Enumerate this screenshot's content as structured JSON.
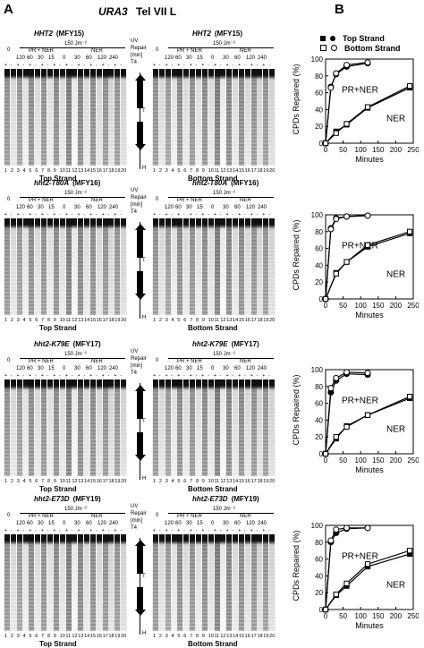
{
  "panel_letters": {
    "a": "A",
    "b": "B"
  },
  "figure_title": {
    "gene": "URA3",
    "rest": "Tel VII L"
  },
  "rows": [
    {
      "strain_left": "HHT2",
      "strain_right": "HHT2",
      "mutant": "",
      "mfy": "(MFY15)"
    },
    {
      "strain_left": "hht2-T80A",
      "strain_right": "hht2-T80A",
      "mutant": "T80A",
      "mfy": "(MFY16)"
    },
    {
      "strain_left": "hht2-K79E",
      "strain_right": "hht2-K79E",
      "mutant": "K79E",
      "mfy": "(MFY17)"
    },
    {
      "strain_left": "hht2-E73D",
      "strain_right": "hht2-E73D",
      "mutant": "E73D",
      "mfy": "(MFY19)"
    }
  ],
  "gel_header": {
    "zero": "0",
    "dose": "150 Jm⁻²",
    "pr_ner": "PR + NER",
    "ner": "NER",
    "times_left": [
      "120",
      "60",
      "30",
      "15"
    ],
    "times_right": [
      "0",
      "30",
      "60",
      "120",
      "240"
    ],
    "uv_labels": [
      "UV",
      "Repair",
      "[min]",
      "T4"
    ],
    "plus_minus": [
      "+",
      "-",
      "+",
      "-",
      "+",
      "-",
      "+",
      "-",
      "+",
      "-",
      "+",
      "-",
      "+",
      "-",
      "+",
      "-",
      "+",
      "-",
      "+",
      "-"
    ]
  },
  "lane_numbers": [
    "1",
    "2",
    "3",
    "4",
    "5",
    "6",
    "7",
    "8",
    "9",
    "10",
    "11",
    "12",
    "13",
    "14",
    "15",
    "16",
    "17",
    "18",
    "19",
    "20"
  ],
  "strand_labels": {
    "top": "Top Strand",
    "bottom": "Bottom Strand"
  },
  "map_labels": {
    "t4": "T4",
    "ura3": "URA3",
    "t": "T",
    "h": "H",
    "telo": "telo"
  },
  "legend": {
    "top": "Top Strand",
    "bottom": "Bottom Strand"
  },
  "chart_data": [
    {
      "type": "line",
      "ylabel": "CPDs Repaired (%)",
      "xlabel": "Minutes",
      "xlim": [
        0,
        250
      ],
      "ylim": [
        0,
        100
      ],
      "xticks": [
        0,
        50,
        100,
        150,
        200,
        250
      ],
      "yticks": [
        0,
        20,
        40,
        60,
        80,
        100
      ],
      "annotations": [
        "PR+NER",
        "NER"
      ],
      "series": [
        {
          "name": "Top Strand",
          "x": [
            0,
            15,
            30,
            60,
            120
          ],
          "y": [
            0,
            67,
            82,
            91,
            95
          ]
        },
        {
          "name": "Bottom Strand",
          "x": [
            0,
            15,
            30,
            60,
            120
          ],
          "y": [
            0,
            66,
            83,
            93,
            96
          ]
        },
        {
          "name": "Top Strand",
          "x": [
            0,
            30,
            60,
            120,
            240
          ],
          "y": [
            0,
            14,
            22,
            42,
            66
          ]
        },
        {
          "name": "Bottom Strand",
          "x": [
            0,
            30,
            60,
            120,
            240
          ],
          "y": [
            0,
            12,
            23,
            43,
            68
          ]
        }
      ]
    },
    {
      "type": "line",
      "ylabel": "CPDs Repaired (%)",
      "xlabel": "Minutes",
      "xlim": [
        0,
        250
      ],
      "ylim": [
        0,
        100
      ],
      "xticks": [
        0,
        50,
        100,
        150,
        200,
        250
      ],
      "yticks": [
        0,
        20,
        40,
        60,
        80,
        100
      ],
      "annotations": [
        "PR+NER",
        "NER"
      ],
      "series": [
        {
          "name": "Top Strand",
          "x": [
            0,
            15,
            30,
            60,
            120
          ],
          "y": [
            0,
            84,
            96,
            98,
            99
          ]
        },
        {
          "name": "Bottom Strand",
          "x": [
            0,
            15,
            30,
            60,
            120
          ],
          "y": [
            0,
            83,
            95,
            98,
            99
          ]
        },
        {
          "name": "Top Strand",
          "x": [
            0,
            30,
            60,
            120,
            240
          ],
          "y": [
            0,
            31,
            44,
            62,
            78
          ]
        },
        {
          "name": "Bottom Strand",
          "x": [
            0,
            30,
            60,
            120,
            240
          ],
          "y": [
            0,
            30,
            44,
            64,
            80
          ]
        }
      ]
    },
    {
      "type": "line",
      "ylabel": "CPDs Repaired (%)",
      "xlabel": "Minutes",
      "xlim": [
        0,
        250
      ],
      "ylim": [
        0,
        100
      ],
      "xticks": [
        0,
        50,
        100,
        150,
        200,
        250
      ],
      "yticks": [
        0,
        20,
        40,
        60,
        80,
        100
      ],
      "annotations": [
        "PR+NER",
        "NER"
      ],
      "series": [
        {
          "name": "Top Strand",
          "x": [
            0,
            15,
            30,
            60,
            120
          ],
          "y": [
            0,
            73,
            87,
            95,
            94
          ]
        },
        {
          "name": "Bottom Strand",
          "x": [
            0,
            15,
            30,
            60,
            120
          ],
          "y": [
            0,
            78,
            90,
            97,
            96
          ]
        },
        {
          "name": "Top Strand",
          "x": [
            0,
            30,
            60,
            120,
            240
          ],
          "y": [
            0,
            18,
            33,
            46,
            66
          ]
        },
        {
          "name": "Bottom Strand",
          "x": [
            0,
            30,
            60,
            120,
            240
          ],
          "y": [
            0,
            20,
            32,
            46,
            68
          ]
        }
      ]
    },
    {
      "type": "line",
      "ylabel": "CPDs Repaired (%)",
      "xlabel": "Minutes",
      "xlim": [
        0,
        250
      ],
      "ylim": [
        0,
        100
      ],
      "xticks": [
        0,
        50,
        100,
        150,
        200,
        250
      ],
      "yticks": [
        0,
        20,
        40,
        60,
        80,
        100
      ],
      "annotations": [
        "PR+NER",
        "NER"
      ],
      "series": [
        {
          "name": "Top Strand",
          "x": [
            0,
            15,
            30,
            60,
            120
          ],
          "y": [
            0,
            80,
            91,
            96,
            97
          ]
        },
        {
          "name": "Bottom Strand",
          "x": [
            0,
            15,
            30,
            60,
            120
          ],
          "y": [
            0,
            82,
            95,
            97,
            97
          ]
        },
        {
          "name": "Top Strand",
          "x": [
            0,
            30,
            60,
            120,
            240
          ],
          "y": [
            0,
            17,
            28,
            51,
            66
          ]
        },
        {
          "name": "Bottom Strand",
          "x": [
            0,
            30,
            60,
            120,
            240
          ],
          "y": [
            0,
            18,
            31,
            54,
            70
          ]
        }
      ]
    }
  ]
}
